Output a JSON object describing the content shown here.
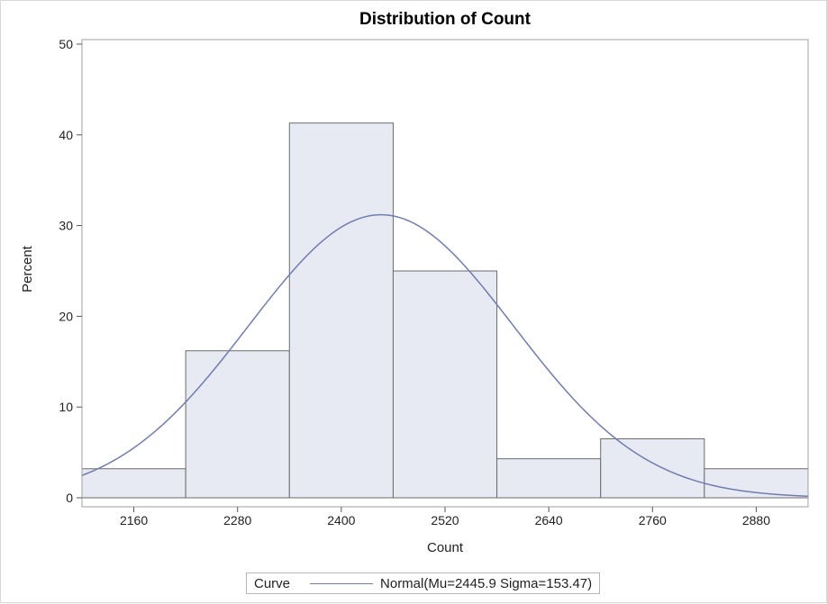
{
  "chart_data": {
    "type": "bar",
    "title": "Distribution of Count",
    "xlabel": "Count",
    "ylabel": "Percent",
    "xlim": [
      2100,
      2940
    ],
    "ylim": [
      0,
      50
    ],
    "yticks": [
      0,
      10,
      20,
      30,
      40,
      50
    ],
    "xticks": [
      2160,
      2280,
      2400,
      2520,
      2640,
      2760,
      2880
    ],
    "bin_width": 120,
    "bins": [
      {
        "center": 2160,
        "percent": 3.2
      },
      {
        "center": 2280,
        "percent": 16.2
      },
      {
        "center": 2400,
        "percent": 41.3
      },
      {
        "center": 2520,
        "percent": 25.0
      },
      {
        "center": 2640,
        "percent": 4.3
      },
      {
        "center": 2760,
        "percent": 6.5
      },
      {
        "center": 2880,
        "percent": 3.2
      }
    ],
    "curve": {
      "type": "normal",
      "mu": 2445.9,
      "sigma": 153.47
    },
    "legend": {
      "title": "Curve",
      "entry": "Normal(Mu=2445.9 Sigma=153.47)",
      "placement": "bottom"
    },
    "colors": {
      "bar_fill": "#e7eaf2",
      "bar_stroke": "#6b6b6b",
      "curve": "#6f7db0",
      "frame": "#a0a0a0"
    }
  }
}
